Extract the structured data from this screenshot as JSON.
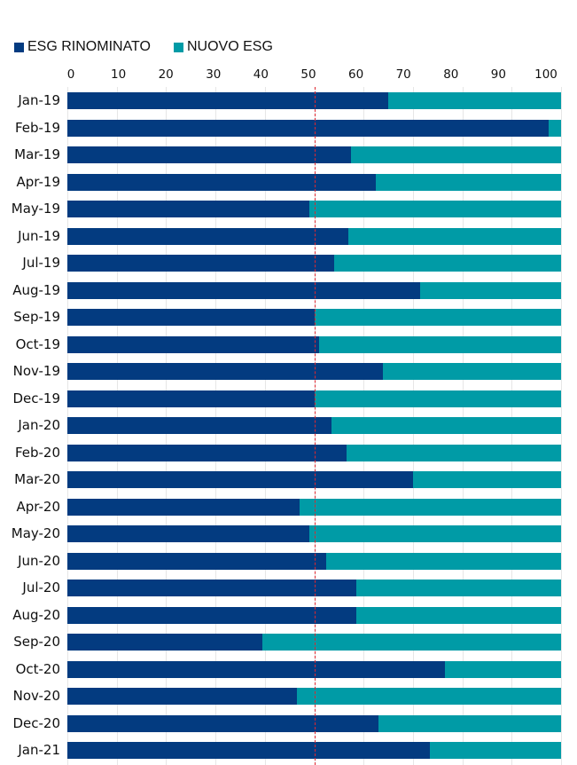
{
  "chart_data": {
    "type": "bar",
    "orientation": "horizontal",
    "stacked": true,
    "title": "",
    "xlabel": "",
    "ylabel": "",
    "xlim": [
      0,
      100
    ],
    "xticks": [
      "0",
      "10",
      "20",
      "30",
      "40",
      "50",
      "60",
      "70",
      "80",
      "90",
      "100"
    ],
    "grid": true,
    "legend_position": "top-left",
    "reference_line": {
      "x": 50,
      "style": "dashed",
      "color": "#e0262e"
    },
    "categories": [
      "Jan-19",
      "Feb-19",
      "Mar-19",
      "Apr-19",
      "May-19",
      "Jun-19",
      "Jul-19",
      "Aug-19",
      "Sep-19",
      "Oct-19",
      "Nov-19",
      "Dec-19",
      "Jan-20",
      "Feb-20",
      "Mar-20",
      "Apr-20",
      "May-20",
      "Jun-20",
      "Jul-20",
      "Aug-20",
      "Sep-20",
      "Oct-20",
      "Nov-20",
      "Dec-20",
      "Jan-21"
    ],
    "series": [
      {
        "name": "ESG RINOMINATO",
        "color": "#033b80",
        "values": [
          65,
          97.5,
          57.5,
          62.5,
          49,
          57,
          54,
          71.5,
          50,
          51,
          64,
          50,
          53.5,
          56.5,
          70,
          47,
          49,
          52.5,
          58.5,
          58.5,
          39.5,
          76.5,
          46.5,
          63,
          73.5
        ]
      },
      {
        "name": "NUOVO ESG",
        "color": "#009ba6",
        "values": [
          35,
          2.5,
          42.5,
          37.5,
          51,
          43,
          46,
          28.5,
          50,
          49,
          36,
          50,
          46.5,
          43.5,
          30,
          53,
          51,
          47.5,
          41.5,
          41.5,
          60.5,
          23.5,
          53.5,
          37,
          26.5
        ]
      }
    ]
  },
  "legend": {
    "items": [
      {
        "label": "ESG RINOMINATO",
        "color": "#033b80"
      },
      {
        "label": "NUOVO ESG",
        "color": "#009ba6"
      }
    ]
  }
}
